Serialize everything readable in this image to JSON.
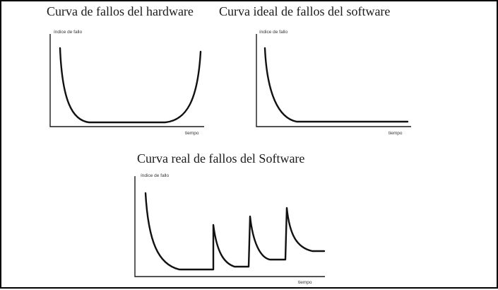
{
  "panels": {
    "hardware": {
      "title": "Curva de fallos del hardware",
      "y_label": "índice de fallo",
      "x_label": "tiempo",
      "curve_shape": "bathtub"
    },
    "ideal_software": {
      "title": "Curva ideal de fallos del software",
      "y_label": "índice de fallo",
      "x_label": "tiempo",
      "curve_shape": "exponential-decay"
    },
    "real_software": {
      "title": "Curva real de fallos del Software",
      "y_label": "índice de fallo",
      "x_label": "tiempo",
      "curve_shape": "sawtooth-with-spikes"
    }
  },
  "colors": {
    "background": "#ffffff",
    "ink": "#111111",
    "border": "#000000"
  }
}
